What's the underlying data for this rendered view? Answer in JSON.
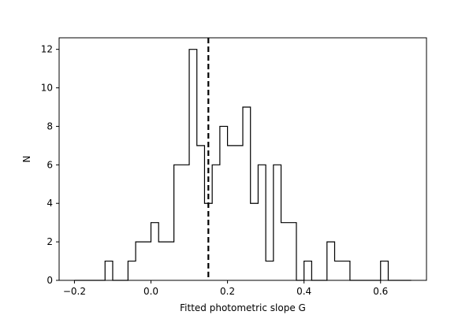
{
  "chart_data": {
    "type": "histogram",
    "title": "",
    "xlabel": "Fitted photometric slope G",
    "ylabel": "N",
    "xlim": [
      -0.24,
      0.72
    ],
    "ylim": [
      0,
      12.6
    ],
    "bin_width": 0.02,
    "bins": [
      {
        "x0": -0.2,
        "x1": -0.18,
        "count": 0
      },
      {
        "x0": -0.18,
        "x1": -0.16,
        "count": 0
      },
      {
        "x0": -0.16,
        "x1": -0.14,
        "count": 0
      },
      {
        "x0": -0.14,
        "x1": -0.12,
        "count": 0
      },
      {
        "x0": -0.12,
        "x1": -0.1,
        "count": 1
      },
      {
        "x0": -0.1,
        "x1": -0.08,
        "count": 0
      },
      {
        "x0": -0.08,
        "x1": -0.06,
        "count": 0
      },
      {
        "x0": -0.06,
        "x1": -0.04,
        "count": 1
      },
      {
        "x0": -0.04,
        "x1": -0.02,
        "count": 2
      },
      {
        "x0": -0.02,
        "x1": 0.0,
        "count": 2
      },
      {
        "x0": 0.0,
        "x1": 0.02,
        "count": 3
      },
      {
        "x0": 0.02,
        "x1": 0.04,
        "count": 2
      },
      {
        "x0": 0.04,
        "x1": 0.06,
        "count": 2
      },
      {
        "x0": 0.06,
        "x1": 0.08,
        "count": 6
      },
      {
        "x0": 0.08,
        "x1": 0.1,
        "count": 6
      },
      {
        "x0": 0.1,
        "x1": 0.12,
        "count": 12
      },
      {
        "x0": 0.12,
        "x1": 0.14,
        "count": 7
      },
      {
        "x0": 0.14,
        "x1": 0.16,
        "count": 4
      },
      {
        "x0": 0.16,
        "x1": 0.18,
        "count": 6
      },
      {
        "x0": 0.18,
        "x1": 0.2,
        "count": 8
      },
      {
        "x0": 0.2,
        "x1": 0.22,
        "count": 7
      },
      {
        "x0": 0.22,
        "x1": 0.24,
        "count": 7
      },
      {
        "x0": 0.24,
        "x1": 0.26,
        "count": 9
      },
      {
        "x0": 0.26,
        "x1": 0.28,
        "count": 4
      },
      {
        "x0": 0.28,
        "x1": 0.3,
        "count": 6
      },
      {
        "x0": 0.3,
        "x1": 0.32,
        "count": 1
      },
      {
        "x0": 0.32,
        "x1": 0.34,
        "count": 6
      },
      {
        "x0": 0.34,
        "x1": 0.36,
        "count": 3
      },
      {
        "x0": 0.36,
        "x1": 0.38,
        "count": 3
      },
      {
        "x0": 0.38,
        "x1": 0.4,
        "count": 0
      },
      {
        "x0": 0.4,
        "x1": 0.42,
        "count": 1
      },
      {
        "x0": 0.42,
        "x1": 0.44,
        "count": 0
      },
      {
        "x0": 0.44,
        "x1": 0.46,
        "count": 0
      },
      {
        "x0": 0.46,
        "x1": 0.48,
        "count": 2
      },
      {
        "x0": 0.48,
        "x1": 0.5,
        "count": 1
      },
      {
        "x0": 0.5,
        "x1": 0.52,
        "count": 1
      },
      {
        "x0": 0.52,
        "x1": 0.54,
        "count": 0
      },
      {
        "x0": 0.54,
        "x1": 0.56,
        "count": 0
      },
      {
        "x0": 0.56,
        "x1": 0.58,
        "count": 0
      },
      {
        "x0": 0.58,
        "x1": 0.6,
        "count": 0
      },
      {
        "x0": 0.6,
        "x1": 0.62,
        "count": 1
      },
      {
        "x0": 0.62,
        "x1": 0.64,
        "count": 0
      },
      {
        "x0": 0.64,
        "x1": 0.66,
        "count": 0
      },
      {
        "x0": 0.66,
        "x1": 0.68,
        "count": 0
      }
    ],
    "reference_line": {
      "x": 0.15,
      "style": "dashed",
      "color": "#000000"
    },
    "xticks": [
      {
        "value": -0.2,
        "label": "−0.2"
      },
      {
        "value": 0.0,
        "label": "0.0"
      },
      {
        "value": 0.2,
        "label": "0.2"
      },
      {
        "value": 0.4,
        "label": "0.4"
      },
      {
        "value": 0.6,
        "label": "0.6"
      }
    ],
    "yticks": [
      {
        "value": 0,
        "label": "0"
      },
      {
        "value": 2,
        "label": "2"
      },
      {
        "value": 4,
        "label": "4"
      },
      {
        "value": 6,
        "label": "6"
      },
      {
        "value": 8,
        "label": "8"
      },
      {
        "value": 10,
        "label": "10"
      },
      {
        "value": 12,
        "label": "12"
      }
    ],
    "grid": false,
    "histtype": "step",
    "line_color": "#000000"
  }
}
